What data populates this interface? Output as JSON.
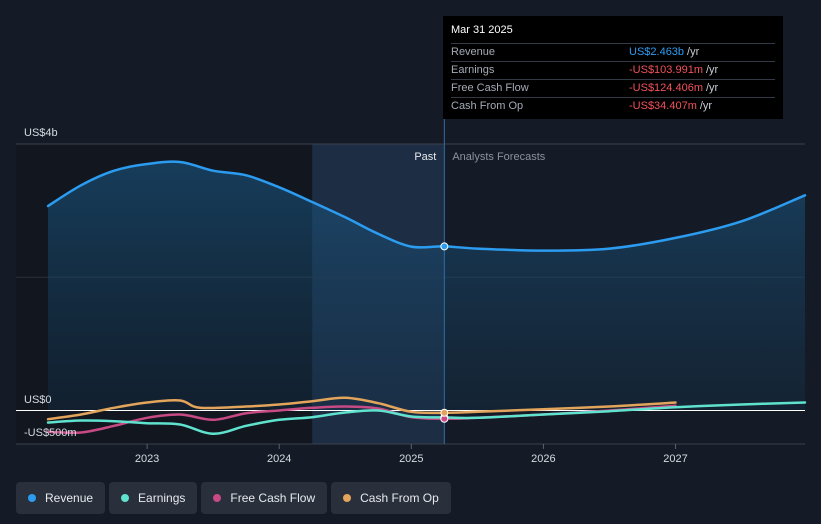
{
  "tooltip": {
    "date": "Mar 31 2025",
    "rows": [
      {
        "label": "Revenue",
        "value": "US$2.463b",
        "unit": "/yr"
      },
      {
        "label": "Earnings",
        "value": "-US$103.991m",
        "unit": "/yr"
      },
      {
        "label": "Free Cash Flow",
        "value": "-US$124.406m",
        "unit": "/yr"
      },
      {
        "label": "Cash From Op",
        "value": "-US$34.407m",
        "unit": "/yr"
      }
    ]
  },
  "labels": {
    "past": "Past",
    "forecast": "Analysts Forecasts",
    "y_top": "US$4b",
    "y_zero": "US$0",
    "y_neg": "-US$500m"
  },
  "legend": [
    {
      "label": "Revenue",
      "color": "#2c9cf0"
    },
    {
      "label": "Earnings",
      "color": "#5fe3cf"
    },
    {
      "label": "Free Cash Flow",
      "color": "#c74a85"
    },
    {
      "label": "Cash From Op",
      "color": "#e3a55b"
    }
  ],
  "colors": {
    "revenue": "#2c9cf0",
    "earnings": "#5fe3cf",
    "fcf": "#c74a85",
    "cfo": "#e3a55b"
  },
  "chart_data": {
    "type": "line",
    "title": "",
    "x_ticks": [
      "2023",
      "2024",
      "2025",
      "2026",
      "2027"
    ],
    "xlim": [
      2022.25,
      2027.98
    ],
    "ylim": [
      -500,
      4000
    ],
    "y_tick_labels": [
      "US$4b",
      "US$0",
      "-US$500m"
    ],
    "past_end": 2025.25,
    "forecast_start_shade": 2024.25,
    "series": [
      {
        "name": "Revenue",
        "key": "revenue",
        "points": [
          [
            2022.25,
            3070
          ],
          [
            2022.5,
            3380
          ],
          [
            2022.75,
            3600
          ],
          [
            2023.0,
            3700
          ],
          [
            2023.25,
            3730
          ],
          [
            2023.5,
            3600
          ],
          [
            2023.75,
            3530
          ],
          [
            2024.0,
            3350
          ],
          [
            2024.25,
            3130
          ],
          [
            2024.5,
            2900
          ],
          [
            2024.75,
            2650
          ],
          [
            2025.0,
            2460
          ],
          [
            2025.25,
            2463
          ],
          [
            2025.5,
            2430
          ],
          [
            2026.0,
            2400
          ],
          [
            2026.5,
            2430
          ],
          [
            2027.0,
            2590
          ],
          [
            2027.5,
            2840
          ],
          [
            2027.98,
            3230
          ]
        ]
      },
      {
        "name": "Earnings",
        "key": "earnings",
        "points": [
          [
            2022.25,
            -180
          ],
          [
            2022.5,
            -150
          ],
          [
            2022.75,
            -160
          ],
          [
            2023.0,
            -190
          ],
          [
            2023.25,
            -210
          ],
          [
            2023.5,
            -350
          ],
          [
            2023.75,
            -230
          ],
          [
            2024.0,
            -140
          ],
          [
            2024.25,
            -100
          ],
          [
            2024.5,
            -30
          ],
          [
            2024.75,
            0
          ],
          [
            2025.0,
            -90
          ],
          [
            2025.25,
            -104
          ],
          [
            2025.5,
            -110
          ],
          [
            2026.0,
            -60
          ],
          [
            2026.5,
            -10
          ],
          [
            2027.0,
            50
          ],
          [
            2027.5,
            90
          ],
          [
            2027.98,
            120
          ]
        ]
      },
      {
        "name": "Free Cash Flow",
        "key": "fcf",
        "points": [
          [
            2022.25,
            -320
          ],
          [
            2022.5,
            -330
          ],
          [
            2022.75,
            -230
          ],
          [
            2023.0,
            -110
          ],
          [
            2023.25,
            -60
          ],
          [
            2023.5,
            -140
          ],
          [
            2023.75,
            -40
          ],
          [
            2024.0,
            0
          ],
          [
            2024.25,
            40
          ],
          [
            2024.5,
            60
          ],
          [
            2024.75,
            30
          ],
          [
            2025.0,
            -100
          ],
          [
            2025.25,
            -124
          ],
          [
            2025.5,
            -110
          ],
          [
            2026.0,
            -60
          ],
          [
            2026.5,
            0
          ],
          [
            2027.0,
            70
          ]
        ]
      },
      {
        "name": "Cash From Op",
        "key": "cfo",
        "points": [
          [
            2022.25,
            -130
          ],
          [
            2022.5,
            -60
          ],
          [
            2022.75,
            40
          ],
          [
            2023.0,
            120
          ],
          [
            2023.25,
            150
          ],
          [
            2023.4,
            40
          ],
          [
            2023.75,
            60
          ],
          [
            2024.0,
            90
          ],
          [
            2024.25,
            140
          ],
          [
            2024.5,
            190
          ],
          [
            2024.75,
            110
          ],
          [
            2025.0,
            -20
          ],
          [
            2025.25,
            -34
          ],
          [
            2025.5,
            -20
          ],
          [
            2026.0,
            20
          ],
          [
            2026.5,
            60
          ],
          [
            2027.0,
            120
          ]
        ]
      }
    ]
  }
}
